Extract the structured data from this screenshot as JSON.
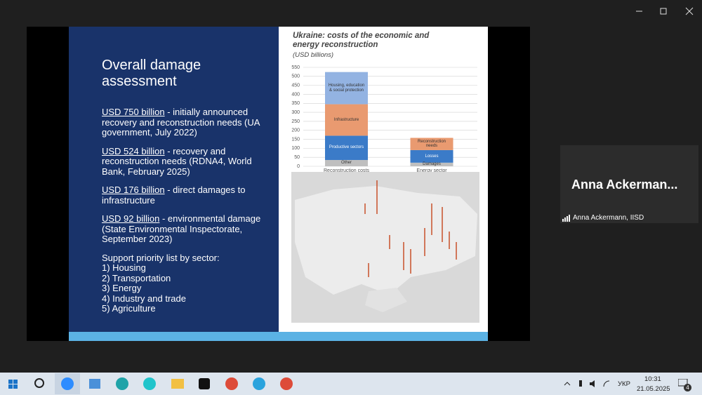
{
  "slide": {
    "title": "Overall damage assessment",
    "items": [
      {
        "link": "USD 750 billion",
        "text": " - initially announced recovery and reconstruction needs (UA government, July 2022)"
      },
      {
        "link": "USD 524 billion",
        "text": " - recovery and reconstruction needs (RDNA4, World Bank, February 2025)"
      },
      {
        "link": "USD 176 billion",
        "text": " - direct damages to infrastructure"
      },
      {
        "link": "USD 92 billion",
        "text": " - environmental damage (State Environmental Inspectorate, September 2023)"
      }
    ],
    "priority_heading": "Support priority list by sector:",
    "priority": [
      "1) Housing",
      "2) Transportation",
      "3) Energy",
      "4) Industry and trade",
      "5) Agriculture"
    ]
  },
  "chart_data": {
    "type": "stacked-bar",
    "title": "Ukraine: costs of the economic and energy reconstruction",
    "subtitle": "(USD billions)",
    "categories": [
      "Reconstruction costs",
      "Energy sector"
    ],
    "series": [
      {
        "name": "Other",
        "color": "#bfbfbf",
        "values": [
          35,
          null
        ]
      },
      {
        "name": "Productive sectors",
        "color": "#3b7bc8",
        "values": [
          135,
          null
        ]
      },
      {
        "name": "Infrastructure",
        "color": "#e99a70",
        "values": [
          175,
          null
        ]
      },
      {
        "name": "Housing, education & social protection",
        "color": "#93b3e2",
        "values": [
          179,
          null
        ]
      },
      {
        "name": "Damages",
        "color": "#bfbfbf",
        "values": [
          null,
          20
        ]
      },
      {
        "name": "Losses",
        "color": "#3b7bc8",
        "values": [
          null,
          70
        ]
      },
      {
        "name": "Reconstruction needs",
        "color": "#e99a70",
        "values": [
          null,
          68
        ]
      }
    ],
    "ylim": [
      0,
      550
    ],
    "yticks": [
      0,
      50,
      100,
      150,
      200,
      250,
      300,
      350,
      400,
      450,
      500,
      550
    ],
    "grid": true
  },
  "participant": {
    "tile_name": "Anna Ackerman...",
    "label": "Anna Ackermann, IISD"
  },
  "taskbar": {
    "language": "УКР",
    "time": "10:31",
    "date": "21.05.2025",
    "notifications": "4"
  }
}
